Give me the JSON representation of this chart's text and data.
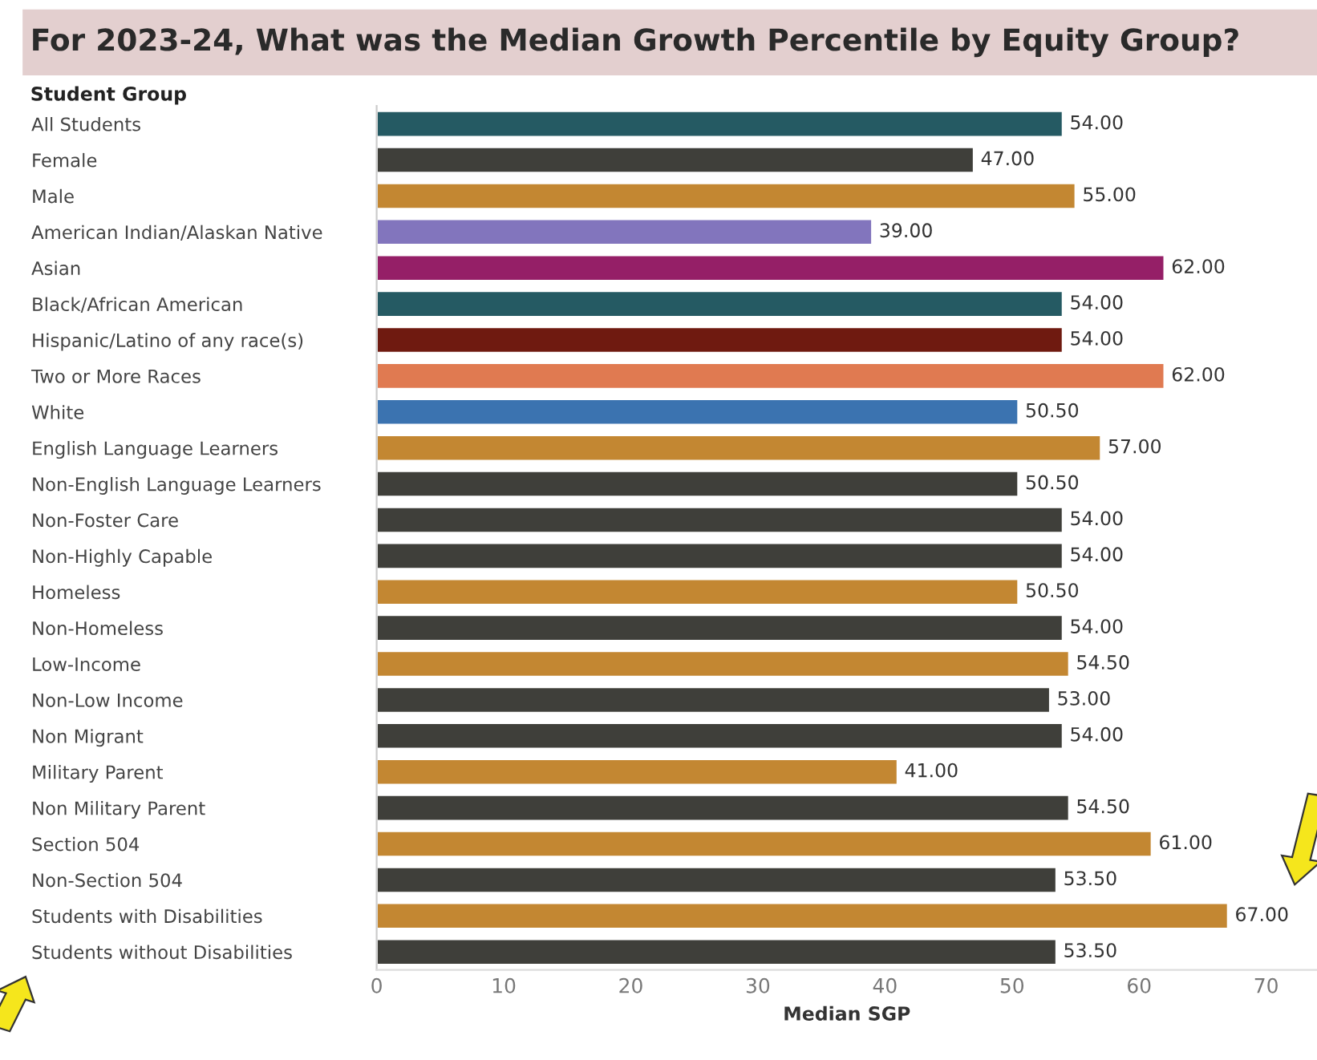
{
  "chart_data": {
    "type": "bar",
    "orientation": "horizontal",
    "title": "For 2023-24, What was the Median Growth Percentile by Equity Group?",
    "ylabel": "Student Group",
    "xlabel": "Median SGP",
    "categories": [
      "All Students",
      "Female",
      "Male",
      "American Indian/Alaskan Native",
      "Asian",
      "Black/African American",
      "Hispanic/Latino of any race(s)",
      "Two or More Races",
      "White",
      "English Language Learners",
      "Non-English Language Learners",
      "Non-Foster Care",
      "Non-Highly Capable",
      "Homeless",
      "Non-Homeless",
      "Low-Income",
      "Non-Low Income",
      "Non Migrant",
      "Military Parent",
      "Non Military Parent",
      "Section 504",
      "Non-Section 504",
      "Students with Disabilities",
      "Students without Disabilities"
    ],
    "values": [
      54,
      47,
      55,
      39,
      62,
      54,
      54,
      62,
      50.5,
      57,
      50.5,
      54,
      54,
      50.5,
      54,
      54.5,
      53,
      54,
      41,
      54.5,
      61,
      53.5,
      67,
      53.5
    ],
    "value_labels": [
      "54.00",
      "47.00",
      "55.00",
      "39.00",
      "62.00",
      "54.00",
      "54.00",
      "62.00",
      "50.50",
      "57.00",
      "50.50",
      "54.00",
      "54.00",
      "50.50",
      "54.00",
      "54.50",
      "53.00",
      "54.00",
      "41.00",
      "54.50",
      "61.00",
      "53.50",
      "67.00",
      "53.50"
    ],
    "colors": [
      "#255a63",
      "#3f3f3a",
      "#c38732",
      "#8275bd",
      "#951f67",
      "#255a63",
      "#6f1a10",
      "#e07a51",
      "#3b73b0",
      "#c38732",
      "#3f3f3a",
      "#3f3f3a",
      "#3f3f3a",
      "#c38732",
      "#3f3f3a",
      "#c38732",
      "#3f3f3a",
      "#3f3f3a",
      "#c38732",
      "#3f3f3a",
      "#c38732",
      "#3f3f3a",
      "#c38732",
      "#3f3f3a"
    ],
    "xlim": [
      0,
      74
    ],
    "xticks": [
      0,
      10,
      20,
      30,
      40,
      50,
      60,
      70
    ],
    "grid": false,
    "legend": false
  }
}
